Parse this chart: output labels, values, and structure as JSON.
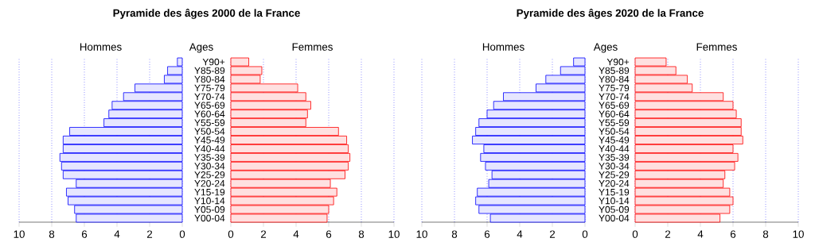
{
  "chart_data": [
    {
      "type": "bar",
      "orientation": "horizontal",
      "title": "Pyramide des âges 2000 de la France",
      "subtitle": "Hommes",
      "tick_labels": "x",
      "color": "#e6e6ff",
      "grid": "x",
      "xlim": [
        10,
        0
      ],
      "xticks": [
        10,
        8,
        6,
        4,
        2,
        0
      ],
      "categories": [
        null,
        null,
        null,
        null,
        null,
        null,
        null,
        null,
        null,
        null,
        null,
        null,
        null,
        null,
        null,
        null,
        null,
        null,
        null
      ],
      "values": [
        0.3,
        0.9,
        1.1,
        2.9,
        3.6,
        4.3,
        4.5,
        4.8,
        6.9,
        7.3,
        7.3,
        7.5,
        7.4,
        7.3,
        6.5,
        7.1,
        7.0,
        6.6,
        6.5
      ]
    },
    {
      "type": "bar",
      "orientation": "horizontal",
      "subtitle": "Femmes",
      "ylabel": "Ages",
      "color": "#ffe0e0",
      "grid": "x",
      "xlim": [
        0,
        10
      ],
      "xticks": [
        0,
        2,
        4,
        6,
        8,
        10
      ],
      "categories": [
        "Y90+",
        "Y85-89",
        "Y80-84",
        "Y75-79",
        "Y70-74",
        "Y65-69",
        "Y60-64",
        "Y55-59",
        "Y50-54",
        "Y45-49",
        "Y40-44",
        "Y35-39",
        "Y30-34",
        "Y25-29",
        "Y20-24",
        "Y15-19",
        "Y10-14",
        "Y05-09",
        "Y00-04"
      ],
      "values": [
        1.1,
        1.9,
        1.8,
        4.1,
        4.6,
        4.9,
        4.7,
        4.6,
        6.6,
        7.1,
        7.2,
        7.3,
        7.2,
        7.0,
        6.1,
        6.5,
        6.3,
        6.0,
        5.9
      ]
    },
    {
      "type": "bar",
      "orientation": "horizontal",
      "title": "Pyramide des âges 2020 de la France",
      "subtitle": "Hommes",
      "tick_labels": "x",
      "color": "#e6e6ff",
      "grid": "x",
      "xlim": [
        10,
        0
      ],
      "xticks": [
        10,
        8,
        6,
        4,
        2,
        0
      ],
      "categories": [
        null,
        null,
        null,
        null,
        null,
        null,
        null,
        null,
        null,
        null,
        null,
        null,
        null,
        null,
        null,
        null,
        null,
        null,
        null
      ],
      "values": [
        0.7,
        1.5,
        2.4,
        3.0,
        5.0,
        5.6,
        6.0,
        6.5,
        6.7,
        6.9,
        6.2,
        6.4,
        6.1,
        5.7,
        5.9,
        6.6,
        6.7,
        6.5,
        5.8
      ]
    },
    {
      "type": "bar",
      "orientation": "horizontal",
      "subtitle": "Femmes",
      "ylabel": "Ages",
      "color": "#ffe0e0",
      "grid": "x",
      "xlim": [
        0,
        10
      ],
      "xticks": [
        0,
        2,
        4,
        6,
        8,
        10
      ],
      "categories": [
        "Y90+",
        "Y85-89",
        "Y80-84",
        "Y75-79",
        "Y70-74",
        "Y65-69",
        "Y60-64",
        "Y55-59",
        "Y50-54",
        "Y45-49",
        "Y40-44",
        "Y35-39",
        "Y30-34",
        "Y25-29",
        "Y20-24",
        "Y15-19",
        "Y10-14",
        "Y05-09",
        "Y00-04"
      ],
      "values": [
        1.9,
        2.5,
        3.2,
        3.5,
        5.4,
        6.0,
        6.2,
        6.5,
        6.5,
        6.6,
        6.0,
        6.3,
        6.1,
        5.5,
        5.4,
        5.8,
        6.0,
        5.8,
        5.2
      ]
    }
  ]
}
